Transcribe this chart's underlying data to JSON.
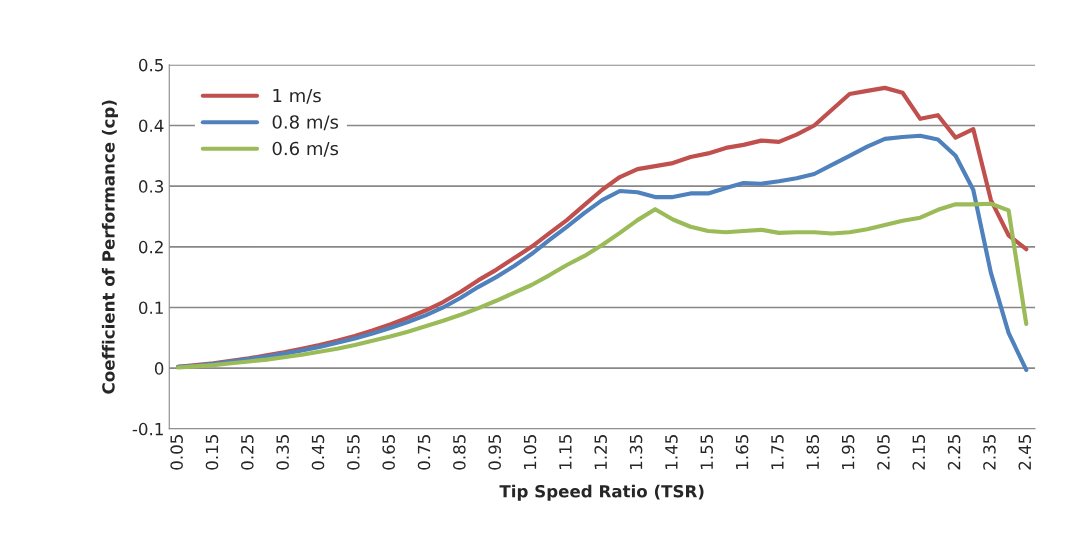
{
  "chart_data": {
    "type": "line",
    "xlabel": "Tip Speed Ratio (TSR)",
    "ylabel": "Coefficient of Performance (cp)",
    "x": [
      0.05,
      0.1,
      0.15,
      0.2,
      0.25,
      0.3,
      0.35,
      0.4,
      0.45,
      0.5,
      0.55,
      0.6,
      0.65,
      0.7,
      0.75,
      0.8,
      0.85,
      0.9,
      0.95,
      1.0,
      1.05,
      1.1,
      1.15,
      1.2,
      1.25,
      1.3,
      1.35,
      1.4,
      1.45,
      1.5,
      1.55,
      1.6,
      1.65,
      1.7,
      1.75,
      1.8,
      1.85,
      1.9,
      1.95,
      2.0,
      2.05,
      2.1,
      2.15,
      2.2,
      2.25,
      2.3,
      2.35,
      2.4,
      2.45
    ],
    "series": [
      {
        "name": "1 m/s",
        "color": "#c0504d",
        "values": [
          0.002,
          0.005,
          0.008,
          0.012,
          0.016,
          0.021,
          0.026,
          0.032,
          0.038,
          0.045,
          0.053,
          0.062,
          0.072,
          0.083,
          0.095,
          0.109,
          0.126,
          0.145,
          0.162,
          0.181,
          0.2,
          0.222,
          0.244,
          0.269,
          0.294,
          0.315,
          0.328,
          0.333,
          0.338,
          0.348,
          0.354,
          0.363,
          0.368,
          0.375,
          0.373,
          0.385,
          0.4,
          0.426,
          0.452,
          0.457,
          0.462,
          0.454,
          0.411,
          0.417,
          0.38,
          0.394,
          0.277,
          0.219,
          0.196
        ]
      },
      {
        "name": "0.8 m/s",
        "color": "#4f81bd",
        "values": [
          0.002,
          0.004,
          0.007,
          0.011,
          0.015,
          0.019,
          0.024,
          0.029,
          0.035,
          0.042,
          0.049,
          0.057,
          0.066,
          0.076,
          0.087,
          0.1,
          0.116,
          0.134,
          0.15,
          0.168,
          0.188,
          0.211,
          0.233,
          0.256,
          0.277,
          0.292,
          0.29,
          0.282,
          0.282,
          0.288,
          0.288,
          0.297,
          0.305,
          0.304,
          0.308,
          0.313,
          0.32,
          0.335,
          0.35,
          0.365,
          0.378,
          0.381,
          0.383,
          0.377,
          0.35,
          0.294,
          0.157,
          0.058,
          -0.003
        ]
      },
      {
        "name": "0.6 m/s",
        "color": "#9bbb59",
        "values": [
          0.001,
          0.003,
          0.005,
          0.008,
          0.011,
          0.014,
          0.018,
          0.022,
          0.027,
          0.032,
          0.038,
          0.045,
          0.052,
          0.06,
          0.069,
          0.078,
          0.088,
          0.099,
          0.111,
          0.124,
          0.137,
          0.153,
          0.17,
          0.185,
          0.203,
          0.223,
          0.244,
          0.262,
          0.245,
          0.233,
          0.226,
          0.224,
          0.226,
          0.228,
          0.223,
          0.224,
          0.224,
          0.222,
          0.224,
          0.229,
          0.236,
          0.243,
          0.248,
          0.261,
          0.27,
          0.27,
          0.271,
          0.26,
          0.073
        ]
      }
    ],
    "xlim": [
      0.025,
      2.475
    ],
    "xticks": [
      0.05,
      0.15,
      0.25,
      0.35,
      0.45,
      0.55,
      0.65,
      0.75,
      0.85,
      0.95,
      1.05,
      1.15,
      1.25,
      1.35,
      1.45,
      1.55,
      1.65,
      1.75,
      1.85,
      1.95,
      2.05,
      2.15,
      2.25,
      2.35,
      2.45
    ],
    "ylim": [
      -0.1,
      0.5
    ],
    "yticks": [
      -0.1,
      0,
      0.1,
      0.2,
      0.3,
      0.4,
      0.5
    ],
    "grid": "y",
    "legend": "top left",
    "marker": "none",
    "line_style": "solid"
  }
}
